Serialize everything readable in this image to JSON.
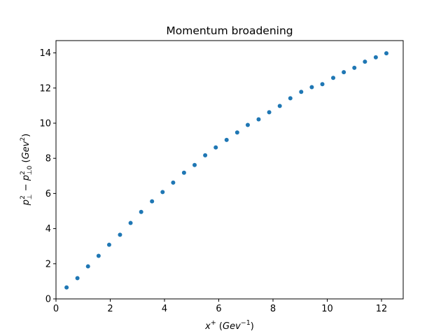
{
  "chart_data": {
    "type": "scatter",
    "title": "Momentum broadening",
    "xlabel": {
      "main": "x",
      "sup": "+",
      "unit_open": " (",
      "unit": "Gev",
      "unit_sup": "−1",
      "unit_close": ")"
    },
    "ylabel": {
      "p1": "p",
      "p1_sup": "2",
      "p1_sub": "⊥",
      "minus": " − ",
      "p2": "p",
      "p2_sup": "2",
      "p2_sub": "⊥0",
      "unit_open": " (",
      "unit": "Gev",
      "unit_sup": "2",
      "unit_close": ")"
    },
    "xlim": [
      0,
      12.8
    ],
    "ylim": [
      0,
      14.7
    ],
    "xticks": [
      0,
      2,
      4,
      6,
      8,
      10,
      12
    ],
    "yticks": [
      0,
      2,
      4,
      6,
      8,
      10,
      12,
      14
    ],
    "grid": false,
    "marker_color": "#1f77b4",
    "series": [
      {
        "x": [
          0.39,
          0.79,
          1.18,
          1.57,
          1.96,
          2.36,
          2.75,
          3.14,
          3.54,
          3.93,
          4.32,
          4.72,
          5.11,
          5.5,
          5.89,
          6.29,
          6.68,
          7.07,
          7.47,
          7.86,
          8.25,
          8.64,
          9.04,
          9.43,
          9.82,
          10.22,
          10.61,
          11.0,
          11.39,
          11.79,
          12.18
        ],
        "y": [
          0.65,
          1.18,
          1.85,
          2.45,
          3.08,
          3.65,
          4.32,
          4.95,
          5.55,
          6.08,
          6.62,
          7.18,
          7.62,
          8.17,
          8.62,
          9.05,
          9.47,
          9.9,
          10.22,
          10.62,
          10.98,
          11.42,
          11.78,
          12.05,
          12.22,
          12.58,
          12.9,
          13.15,
          13.5,
          13.75,
          13.98
        ]
      }
    ]
  }
}
